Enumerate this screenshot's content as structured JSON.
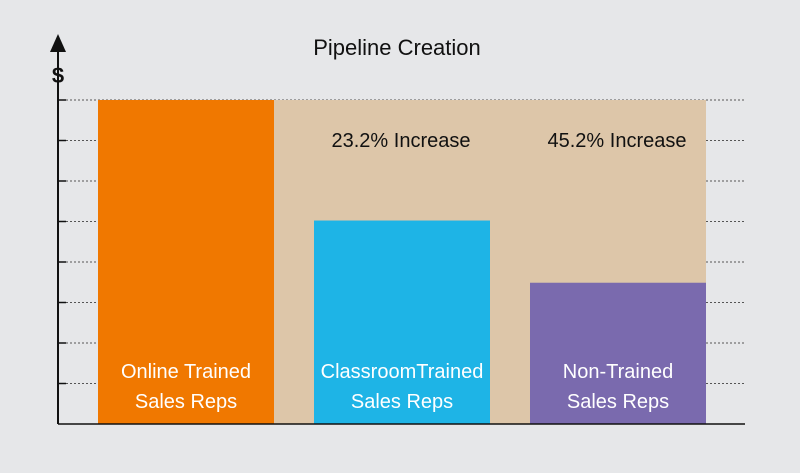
{
  "chart_data": {
    "type": "bar",
    "title": "Pipeline Creation",
    "ylabel": "$",
    "xlabel": "",
    "categories": [
      "Online Trained Sales Reps",
      "ClassroomTrained Sales Reps",
      "Non-Trained Sales Reps"
    ],
    "category_lines": [
      [
        "Online Trained",
        "Sales Reps"
      ],
      [
        "ClassroomTrained",
        "Sales Reps"
      ],
      [
        "Non-Trained",
        "Sales Reps"
      ]
    ],
    "values": [
      100,
      62.8,
      43.6
    ],
    "ylim": [
      0,
      100
    ],
    "grid": true,
    "colors": [
      "#f07800",
      "#1eb4e6",
      "#7a6aae"
    ],
    "highlight_color": "#ddc6a9",
    "annotations": [
      "23.2% Increase",
      "45.2% Increase"
    ]
  }
}
